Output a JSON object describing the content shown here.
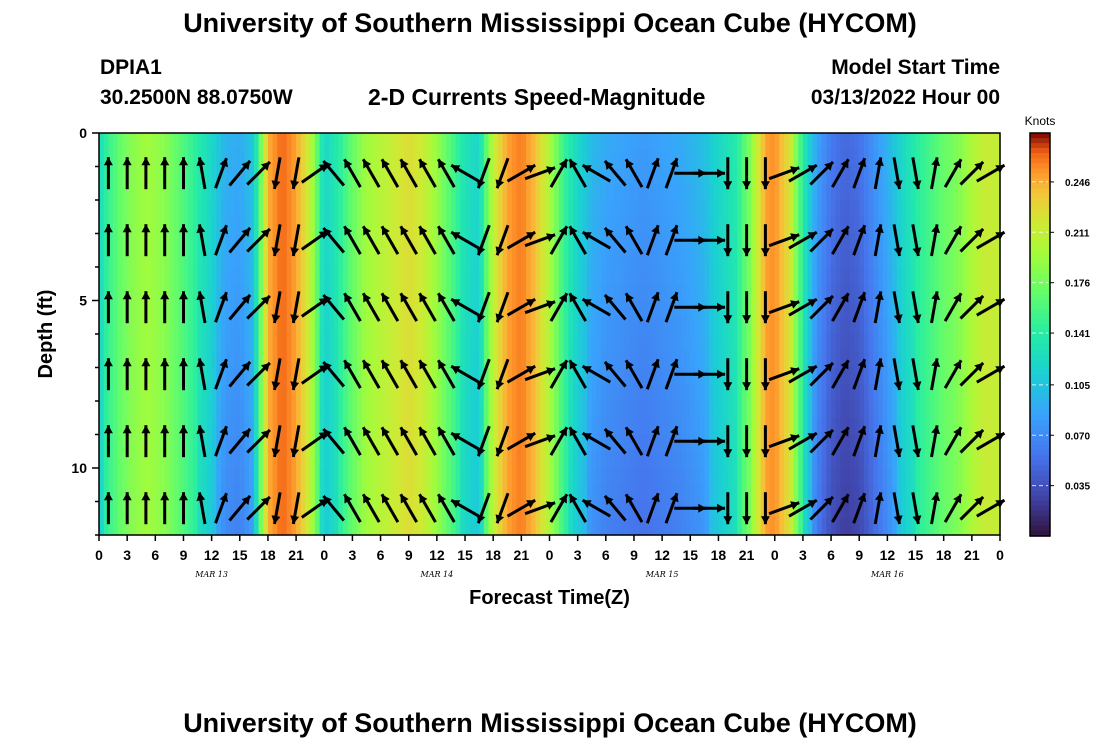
{
  "header": {
    "title": "University of Southern Mississippi Ocean Cube (HYCOM)",
    "station_id": "DPIA1",
    "coordinates": "30.2500N  88.0750W",
    "plot_title": "2-D Currents Speed-Magnitude",
    "model_start_label": "Model Start Time",
    "model_start_value": "03/13/2022 Hour 00"
  },
  "footer": {
    "title": "University of Southern Mississippi Ocean Cube (HYCOM)"
  },
  "chart_data": {
    "type": "heatmap",
    "title": "2-D Currents Speed-Magnitude",
    "xlabel": "Forecast Time(Z)",
    "ylabel": "Depth (ft)",
    "x_hours_range": [
      0,
      96
    ],
    "ylim": [
      0,
      12
    ],
    "y_ticks": [
      0,
      5,
      10
    ],
    "y_tick_labels": [
      "0",
      "5",
      "10"
    ],
    "x_tick_labels": [
      "0",
      "3",
      "6",
      "9",
      "12",
      "15",
      "18",
      "21",
      "0",
      "3",
      "6",
      "9",
      "12",
      "15",
      "18",
      "21",
      "0",
      "3",
      "6",
      "9",
      "12",
      "15",
      "18",
      "21",
      "0",
      "3",
      "6",
      "9",
      "12",
      "15",
      "18",
      "21",
      "0"
    ],
    "date_labels": [
      "MAR 13",
      "MAR 14",
      "MAR 15",
      "MAR 16"
    ],
    "colorbar": {
      "title": "Knots",
      "range": [
        0.0,
        0.28
      ],
      "ticks": [
        0.035,
        0.07,
        0.105,
        0.141,
        0.176,
        0.211,
        0.246
      ],
      "tick_labels": [
        "0.035",
        "0.070",
        "0.105",
        "0.141",
        "0.176",
        "0.211",
        "0.246"
      ]
    },
    "speed_profile": {
      "hours": [
        0,
        1,
        3,
        5,
        7,
        9,
        10.5,
        12,
        13.5,
        15,
        16.5,
        18,
        19.5,
        21,
        22.5,
        24,
        25.5,
        27,
        28.5,
        30,
        31.5,
        33,
        34.5,
        36,
        37.5,
        39,
        40.5,
        42,
        43.5,
        45,
        46.5,
        48,
        49.5,
        51,
        52.5,
        54,
        56,
        58,
        60,
        62,
        64,
        66,
        68,
        69.5,
        71,
        72,
        73.5,
        75,
        76.5,
        78,
        79.5,
        81,
        82.5,
        84,
        85.5,
        87,
        88.5,
        90,
        91.5,
        93,
        94.5,
        96
      ],
      "knots": [
        0.125,
        0.15,
        0.18,
        0.195,
        0.185,
        0.16,
        0.14,
        0.12,
        0.095,
        0.09,
        0.11,
        0.245,
        0.265,
        0.25,
        0.21,
        0.12,
        0.14,
        0.17,
        0.195,
        0.205,
        0.215,
        0.225,
        0.215,
        0.19,
        0.16,
        0.13,
        0.12,
        0.21,
        0.25,
        0.26,
        0.24,
        0.2,
        0.15,
        0.12,
        0.1,
        0.09,
        0.085,
        0.08,
        0.085,
        0.09,
        0.1,
        0.12,
        0.14,
        0.185,
        0.25,
        0.255,
        0.225,
        0.14,
        0.085,
        0.06,
        0.05,
        0.055,
        0.075,
        0.095,
        0.12,
        0.14,
        0.155,
        0.17,
        0.18,
        0.2,
        0.215,
        0.21
      ]
    },
    "vectors": {
      "depths_ft": [
        1.2,
        3.2,
        5.2,
        7.2,
        9.2,
        11.2
      ],
      "hours": [
        1,
        3,
        5,
        7,
        9,
        11,
        13,
        15,
        17,
        19,
        21,
        23,
        25,
        27,
        29,
        31,
        33,
        35,
        37,
        39,
        41,
        43,
        45,
        47,
        49,
        51,
        53,
        55,
        57,
        59,
        61,
        63,
        65,
        67,
        69,
        71,
        73,
        75,
        77,
        79,
        81,
        83,
        85,
        87,
        89,
        91,
        93,
        95
      ],
      "directions_deg": [
        0,
        0,
        0,
        0,
        0,
        350,
        20,
        40,
        45,
        190,
        190,
        55,
        320,
        330,
        330,
        330,
        330,
        330,
        330,
        300,
        200,
        200,
        60,
        70,
        30,
        330,
        300,
        320,
        330,
        20,
        20,
        90,
        90,
        180,
        180,
        180,
        70,
        60,
        45,
        30,
        20,
        10,
        170,
        170,
        10,
        30,
        45,
        60
      ]
    }
  }
}
